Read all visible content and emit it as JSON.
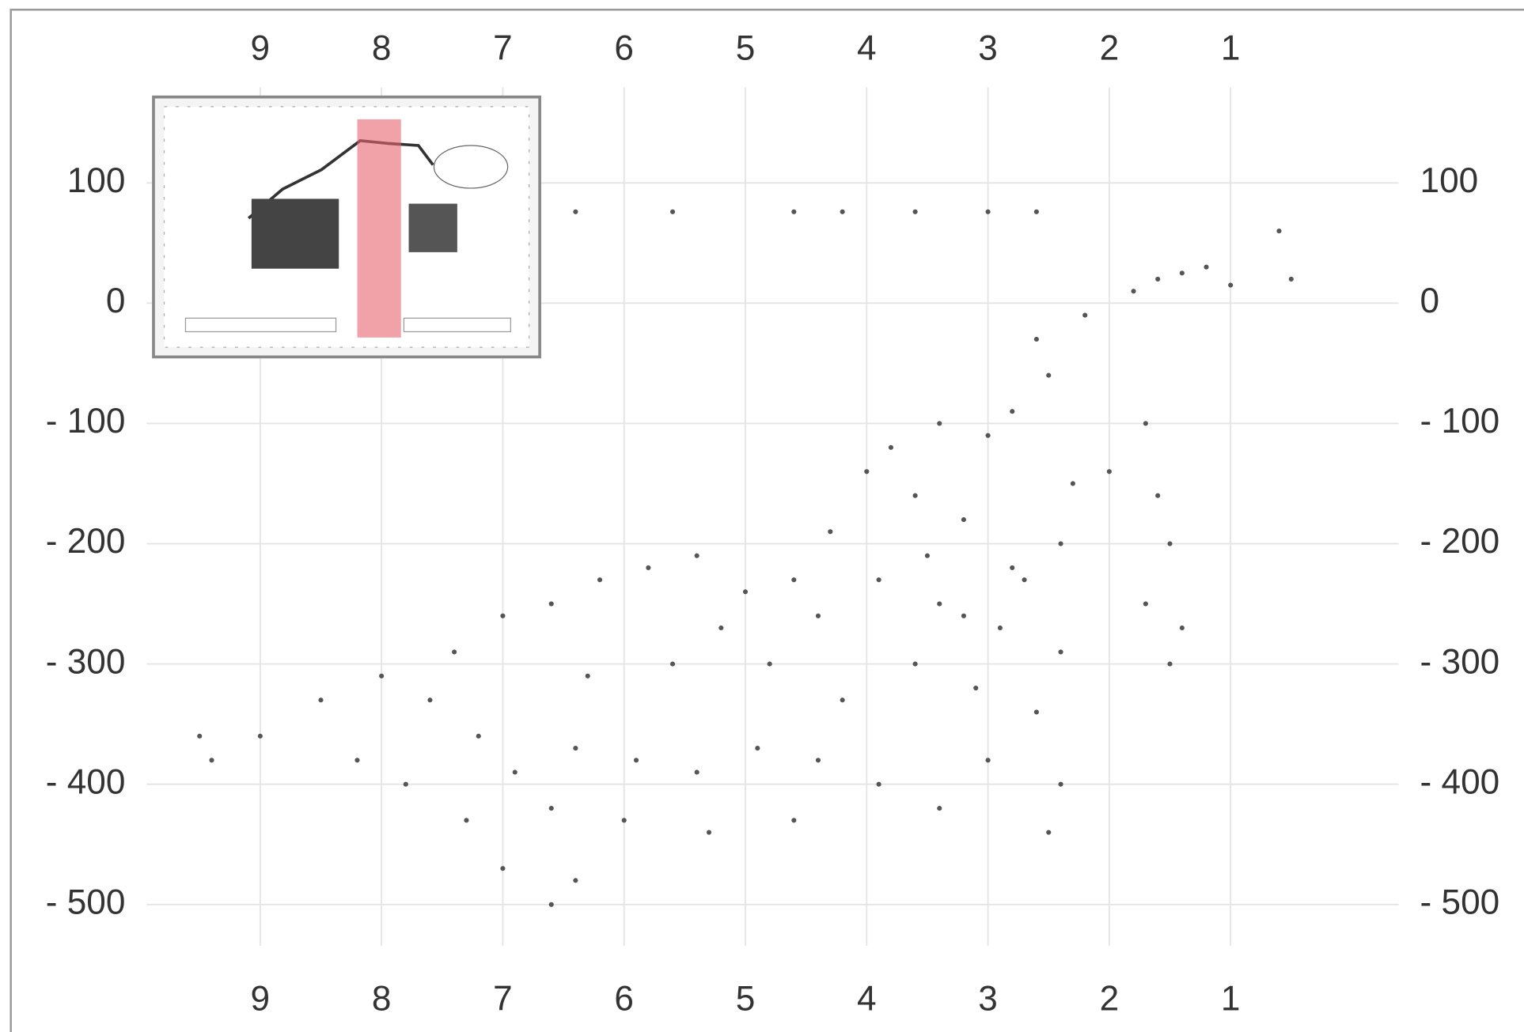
{
  "chart_data": {
    "type": "scatter",
    "x": [
      1.6,
      1.4,
      1.2,
      1.0,
      0.6,
      0.5,
      1.8,
      2.2,
      2.6,
      2.5,
      3.0,
      2.8,
      3.4,
      3.8,
      2.3,
      2.0,
      1.6,
      1.5,
      1.7,
      1.5,
      2.4,
      2.8,
      3.2,
      3.6,
      4.0,
      4.3,
      3.9,
      3.4,
      2.9,
      2.4,
      4.6,
      5.0,
      5.4,
      5.8,
      6.2,
      6.6,
      7.0,
      7.4,
      5.2,
      4.4,
      3.6,
      3.1,
      2.6,
      3.0,
      2.4,
      2.5,
      3.4,
      3.9,
      4.4,
      4.9,
      5.4,
      5.9,
      6.4,
      6.9,
      7.2,
      6.6,
      6.0,
      5.3,
      4.6,
      7.6,
      8.0,
      8.5,
      9.0,
      9.4,
      9.5,
      8.2,
      7.8,
      7.3,
      7.0,
      6.4,
      6.6,
      4.8,
      5.6,
      6.3,
      3.2,
      2.7,
      3.5,
      4.2,
      1.4,
      1.7,
      6.4,
      5.6,
      4.6,
      4.2,
      3.6,
      3.0,
      2.6
    ],
    "values": [
      20,
      25,
      30,
      15,
      60,
      20,
      10,
      -10,
      -30,
      -60,
      -110,
      -90,
      -100,
      -120,
      -150,
      -140,
      -160,
      -200,
      -250,
      -300,
      -200,
      -220,
      -180,
      -160,
      -140,
      -190,
      -230,
      -250,
      -270,
      -290,
      -230,
      -240,
      -210,
      -220,
      -230,
      -250,
      -260,
      -290,
      -270,
      -260,
      -300,
      -320,
      -340,
      -380,
      -400,
      -440,
      -420,
      -400,
      -380,
      -370,
      -390,
      -380,
      -370,
      -390,
      -360,
      -420,
      -430,
      -440,
      -430,
      -330,
      -310,
      -330,
      -360,
      -380,
      -360,
      -380,
      -400,
      -430,
      -470,
      -480,
      -500,
      -300,
      -300,
      -310,
      -260,
      -230,
      -210,
      -330,
      -270,
      -100,
      76,
      76,
      76,
      76,
      76,
      76,
      76
    ],
    "color": "#555555",
    "xlim": [
      11.04,
      -1.41
    ],
    "xticks": [
      9,
      8,
      7,
      6,
      5,
      4,
      3,
      2,
      1
    ],
    "ylim": [
      -606,
      244
    ],
    "yticks": [
      100,
      0,
      {
        "value": -100,
        "label": "- 100"
      },
      {
        "value": -200,
        "label": "- 200"
      },
      {
        "value": -300,
        "label": "- 300"
      },
      {
        "value": -400,
        "label": "- 400"
      },
      {
        "value": -500,
        "label": "- 500"
      }
    ],
    "grid": true
  }
}
